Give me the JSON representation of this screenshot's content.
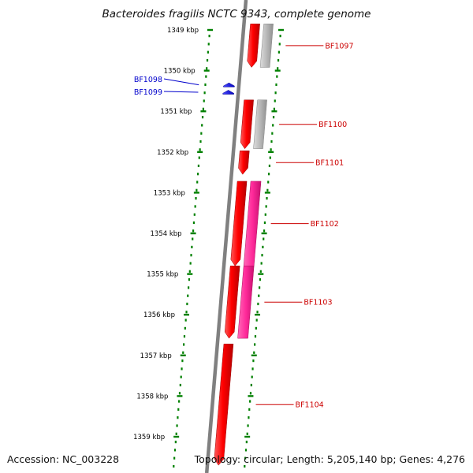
{
  "title": "Bacteroides fragilis NCTC 9343, complete genome",
  "footer": {
    "accession": "Accession: NC_003228",
    "summary": "Topology: circular; Length: 5,205,140 bp; Genes: 4,276"
  },
  "colors": {
    "gene_forward": "#ff0000",
    "gene_reverse": "#0000ff",
    "cds_gray": "#b8b8b8",
    "cds_magenta": "#ff2a9a",
    "ruler": "#008000",
    "backbone": "#808080",
    "label_forward": "#cc0000",
    "label_reverse": "#0000cc"
  },
  "ruler_labels": [
    "1349 kbp",
    "1350 kbp",
    "1351 kbp",
    "1352 kbp",
    "1353 kbp",
    "1354 kbp",
    "1355 kbp",
    "1356 kbp",
    "1357 kbp",
    "1358 kbp",
    "1359 kbp"
  ],
  "reverse_genes": [
    {
      "label": "BF1098",
      "start_kbp": 1350.3,
      "end_kbp": 1350.4
    },
    {
      "label": "BF1099",
      "start_kbp": 1350.48,
      "end_kbp": 1350.58
    }
  ],
  "forward_genes": [
    {
      "label": "BF1097",
      "start_kbp": 1348.85,
      "end_kbp": 1349.92,
      "cds": "gray"
    },
    {
      "label": "BF1100",
      "start_kbp": 1350.72,
      "end_kbp": 1351.92,
      "cds": "gray"
    },
    {
      "label": "BF1101",
      "start_kbp": 1351.97,
      "end_kbp": 1352.55,
      "cds": "none"
    },
    {
      "label": "BF1102",
      "start_kbp": 1352.72,
      "end_kbp": 1354.8,
      "cds": "magenta"
    },
    {
      "label": "BF1103",
      "start_kbp": 1354.8,
      "end_kbp": 1356.58,
      "cds": "magenta"
    },
    {
      "label": "BF1104",
      "start_kbp": 1356.72,
      "end_kbp": 1359.7,
      "cds": "none"
    }
  ]
}
